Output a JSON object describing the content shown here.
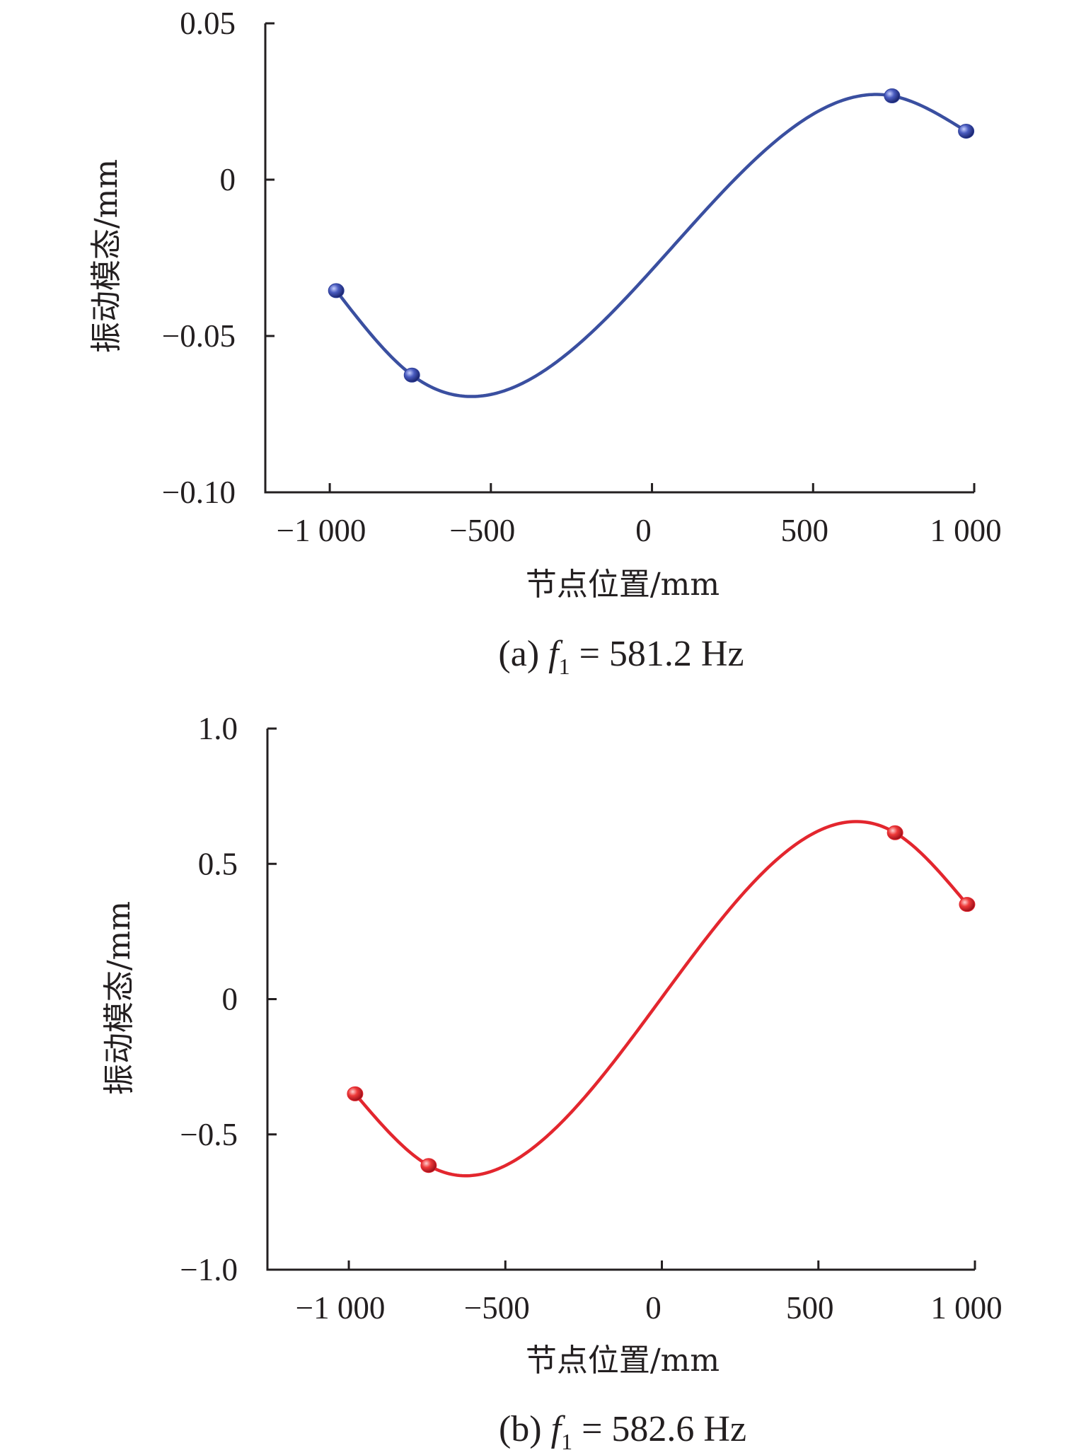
{
  "chart_data": [
    {
      "type": "line",
      "panel_label": "(a)",
      "caption": {
        "prefix": "(a) ",
        "f_symbol": "f",
        "f_subscript": "1",
        "suffix": " = 581.2 Hz"
      },
      "xlabel": "节点位置/mm",
      "ylabel": "振动模态/mm",
      "xlim": [
        -1200,
        1000
      ],
      "ylim": [
        -0.1,
        0.05
      ],
      "xticks": [
        -1000,
        -500,
        0,
        500,
        1000
      ],
      "xtick_labels": [
        "−1 000",
        "−500",
        "0",
        "500",
        "1 000"
      ],
      "yticks": [
        0.05,
        0,
        -0.05,
        -0.1
      ],
      "ytick_labels": [
        "0.05",
        "0",
        "−0.05",
        "−0.10"
      ],
      "series": [
        {
          "color": "#3a4fa0",
          "marker_color": "#2e3f99",
          "x": [
            -980,
            -745,
            745,
            975
          ],
          "y": [
            -0.0355,
            -0.0625,
            0.0268,
            0.0155
          ]
        }
      ]
    },
    {
      "type": "line",
      "panel_label": "(b)",
      "caption": {
        "prefix": "(b) ",
        "f_symbol": "f",
        "f_subscript": "1",
        "suffix": " = 582.6 Hz"
      },
      "xlabel": "节点位置/mm",
      "ylabel": "振动模态/mm",
      "xlim": [
        -1260,
        1000
      ],
      "ylim": [
        -1.0,
        1.0
      ],
      "xticks": [
        -1000,
        -500,
        0,
        500,
        1000
      ],
      "xtick_labels": [
        "−1 000",
        "−500",
        "0",
        "500",
        "1 000"
      ],
      "yticks": [
        1.0,
        0.5,
        0,
        -0.5,
        -1.0
      ],
      "ytick_labels": [
        "1.0",
        "0.5",
        "0",
        "−0.5",
        "−1.0"
      ],
      "series": [
        {
          "color": "#e3262e",
          "marker_color": "#e3262e",
          "x": [
            -980,
            -745,
            745,
            975
          ],
          "y": [
            -0.35,
            -0.615,
            0.615,
            0.35
          ]
        }
      ]
    }
  ]
}
